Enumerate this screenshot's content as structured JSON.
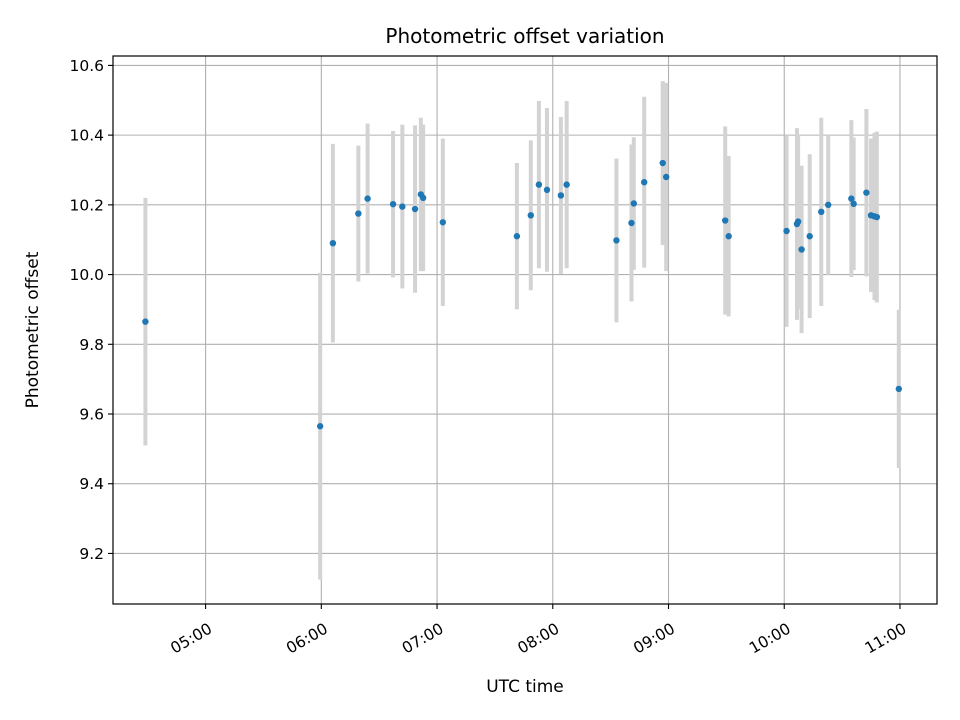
{
  "chart_data": {
    "type": "scatter",
    "title": "Photometric offset variation",
    "xlabel": "UTC time",
    "ylabel": "Photometric offset",
    "x_unit": "hours (UTC, decimal)",
    "xlim": [
      4.2,
      11.32
    ],
    "ylim": [
      9.055,
      10.627
    ],
    "xticks": [
      {
        "value": 5,
        "label": "05:00"
      },
      {
        "value": 6,
        "label": "06:00"
      },
      {
        "value": 7,
        "label": "07:00"
      },
      {
        "value": 8,
        "label": "08:00"
      },
      {
        "value": 9,
        "label": "09:00"
      },
      {
        "value": 10,
        "label": "10:00"
      },
      {
        "value": 11,
        "label": "11:00"
      }
    ],
    "yticks": [
      {
        "value": 9.2,
        "label": "9.2"
      },
      {
        "value": 9.4,
        "label": "9.4"
      },
      {
        "value": 9.6,
        "label": "9.6"
      },
      {
        "value": 9.8,
        "label": "9.8"
      },
      {
        "value": 10.0,
        "label": "10.0"
      },
      {
        "value": 10.2,
        "label": "10.2"
      },
      {
        "value": 10.4,
        "label": "10.4"
      },
      {
        "value": 10.6,
        "label": "10.6"
      }
    ],
    "grid": true,
    "colors": {
      "point": "#1f77b4",
      "errorbar": "#d3d3d3",
      "grid": "#b0b0b0"
    },
    "points": [
      {
        "x": 4.48,
        "y": 9.865,
        "err": 0.355
      },
      {
        "x": 5.99,
        "y": 9.565,
        "err": 0.44
      },
      {
        "x": 6.1,
        "y": 10.09,
        "err": 0.285
      },
      {
        "x": 6.32,
        "y": 10.175,
        "err": 0.195
      },
      {
        "x": 6.4,
        "y": 10.218,
        "err": 0.215
      },
      {
        "x": 6.62,
        "y": 10.202,
        "err": 0.21
      },
      {
        "x": 6.7,
        "y": 10.195,
        "err": 0.235
      },
      {
        "x": 6.81,
        "y": 10.188,
        "err": 0.24
      },
      {
        "x": 6.86,
        "y": 10.23,
        "err": 0.22
      },
      {
        "x": 6.88,
        "y": 10.22,
        "err": 0.21
      },
      {
        "x": 7.05,
        "y": 10.15,
        "err": 0.24
      },
      {
        "x": 7.69,
        "y": 10.11,
        "err": 0.21
      },
      {
        "x": 7.81,
        "y": 10.17,
        "err": 0.215
      },
      {
        "x": 7.88,
        "y": 10.258,
        "err": 0.24
      },
      {
        "x": 7.95,
        "y": 10.243,
        "err": 0.235
      },
      {
        "x": 8.07,
        "y": 10.227,
        "err": 0.225
      },
      {
        "x": 8.12,
        "y": 10.258,
        "err": 0.24
      },
      {
        "x": 8.55,
        "y": 10.098,
        "err": 0.235
      },
      {
        "x": 8.68,
        "y": 10.148,
        "err": 0.225
      },
      {
        "x": 8.7,
        "y": 10.204,
        "err": 0.19
      },
      {
        "x": 8.79,
        "y": 10.265,
        "err": 0.245
      },
      {
        "x": 8.95,
        "y": 10.32,
        "err": 0.235
      },
      {
        "x": 8.98,
        "y": 10.28,
        "err": 0.27
      },
      {
        "x": 9.49,
        "y": 10.155,
        "err": 0.27
      },
      {
        "x": 9.52,
        "y": 10.11,
        "err": 0.23
      },
      {
        "x": 10.02,
        "y": 10.125,
        "err": 0.275
      },
      {
        "x": 10.11,
        "y": 10.145,
        "err": 0.275
      },
      {
        "x": 10.12,
        "y": 10.152,
        "err": 0.25
      },
      {
        "x": 10.15,
        "y": 10.072,
        "err": 0.24
      },
      {
        "x": 10.22,
        "y": 10.11,
        "err": 0.235
      },
      {
        "x": 10.32,
        "y": 10.18,
        "err": 0.27
      },
      {
        "x": 10.38,
        "y": 10.2,
        "err": 0.2
      },
      {
        "x": 10.58,
        "y": 10.218,
        "err": 0.225
      },
      {
        "x": 10.6,
        "y": 10.203,
        "err": 0.19
      },
      {
        "x": 10.71,
        "y": 10.235,
        "err": 0.24
      },
      {
        "x": 10.75,
        "y": 10.17,
        "err": 0.22
      },
      {
        "x": 10.78,
        "y": 10.167,
        "err": 0.24
      },
      {
        "x": 10.8,
        "y": 10.165,
        "err": 0.245
      },
      {
        "x": 10.99,
        "y": 9.672,
        "err": 0.227
      }
    ]
  }
}
